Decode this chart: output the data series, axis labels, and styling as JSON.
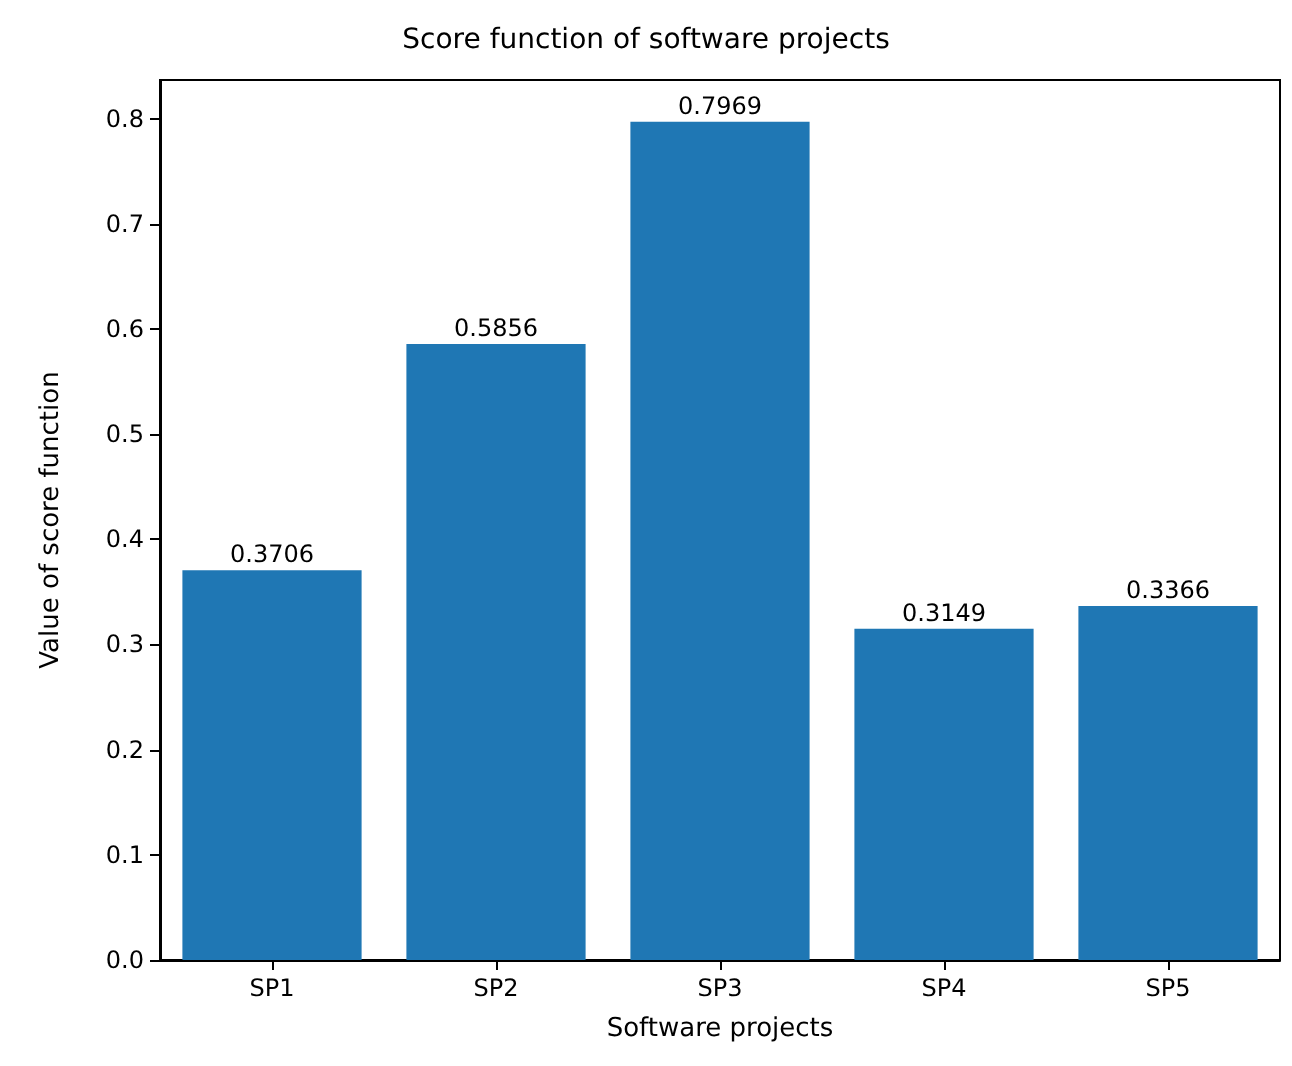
{
  "chart_data": {
    "type": "bar",
    "title": "Score function of software projects",
    "xlabel": "Software projects",
    "ylabel": "Value of score function",
    "categories": [
      "SP1",
      "SP2",
      "SP3",
      "SP4",
      "SP5"
    ],
    "values": [
      0.3706,
      0.5856,
      0.7969,
      0.3149,
      0.3366
    ],
    "color": "#1f77b4",
    "ylim": [
      0,
      0.8367
    ],
    "yticks": [
      {
        "value": 0,
        "label": "0.0"
      },
      {
        "value": 0.1,
        "label": "0.1"
      },
      {
        "value": 0.2,
        "label": "0.2"
      },
      {
        "value": 0.3,
        "label": "0.3"
      },
      {
        "value": 0.4,
        "label": "0.4"
      },
      {
        "value": 0.5,
        "label": "0.5"
      },
      {
        "value": 0.6,
        "label": "0.6"
      },
      {
        "value": 0.7,
        "label": "0.7"
      },
      {
        "value": 0.8,
        "label": "0.8"
      }
    ],
    "data_labels": true,
    "grid": false
  }
}
